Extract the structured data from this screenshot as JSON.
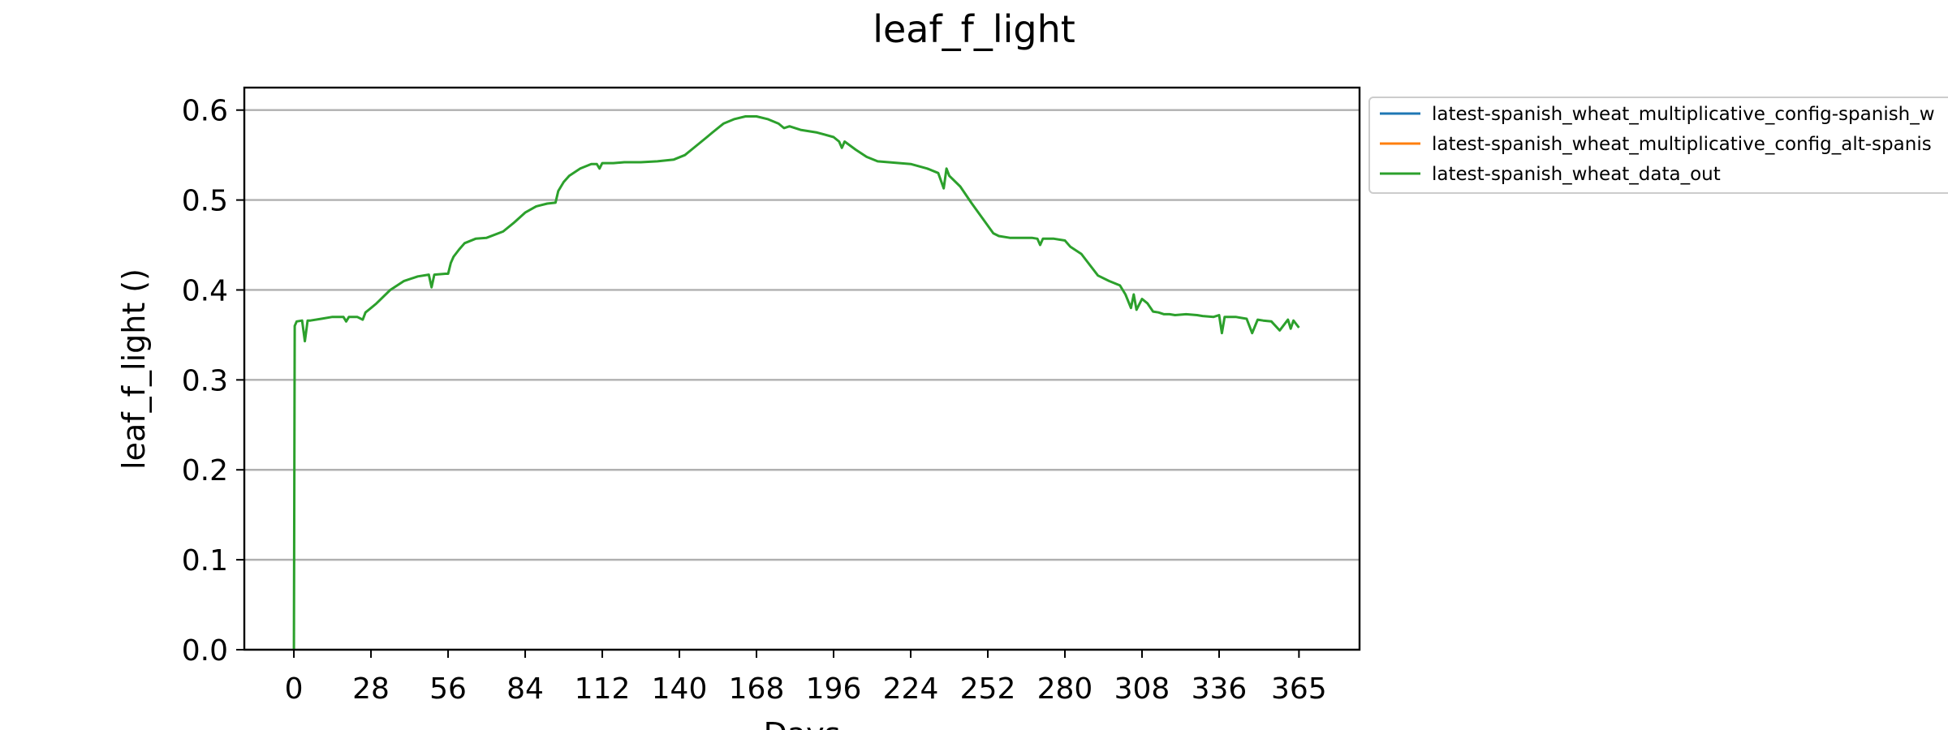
{
  "chart_data": {
    "type": "line",
    "title": "leaf_f_light",
    "xlabel": "Days",
    "ylabel": "leaf_f_light ()",
    "xlim": [
      -18,
      387
    ],
    "ylim": [
      0,
      0.625
    ],
    "x_ticks": [
      0,
      28,
      56,
      84,
      112,
      140,
      168,
      196,
      224,
      252,
      280,
      308,
      336,
      365
    ],
    "y_ticks": [
      0.0,
      0.1,
      0.2,
      0.3,
      0.4,
      0.5,
      0.6
    ],
    "y_tick_labels": [
      "0.0",
      "0.1",
      "0.2",
      "0.3",
      "0.4",
      "0.5",
      "0.6"
    ],
    "grid": "horizontal",
    "legend_position": "outside-right",
    "series": [
      {
        "name": "latest-spanish_wheat_multiplicative_config-spanish_w",
        "color": "#1f77b4",
        "x": [],
        "y": []
      },
      {
        "name": "latest-spanish_wheat_multiplicative_config_alt-spanis",
        "color": "#ff7f0e",
        "x": [],
        "y": []
      },
      {
        "name": "latest-spanish_wheat_data_out",
        "color": "#2ca02c",
        "x": [
          0,
          0.3,
          1,
          3,
          4,
          5,
          6,
          10,
          14,
          18,
          19,
          20,
          23,
          25,
          26,
          28,
          30,
          35,
          40,
          45,
          49,
          50,
          51,
          55,
          56,
          57,
          58,
          60,
          62,
          66,
          70,
          76,
          80,
          84,
          88,
          92,
          95,
          96,
          98,
          100,
          104,
          108,
          110,
          111,
          112,
          116,
          120,
          126,
          132,
          138,
          142,
          146,
          150,
          152,
          156,
          160,
          164,
          168,
          172,
          176,
          178,
          180,
          184,
          190,
          196,
          198,
          199,
          200,
          204,
          208,
          212,
          216,
          224,
          230,
          234,
          236,
          237,
          238,
          242,
          246,
          250,
          254,
          256,
          260,
          264,
          268,
          270,
          271,
          272,
          276,
          280,
          282,
          286,
          288,
          292,
          296,
          300,
          302,
          304,
          305,
          306,
          308,
          310,
          312,
          314,
          316,
          318,
          320,
          324,
          328,
          330,
          334,
          336,
          337,
          338,
          342,
          346,
          348,
          350,
          352,
          355,
          358,
          361,
          362,
          363,
          365
        ],
        "y": [
          0.0,
          0.36,
          0.365,
          0.366,
          0.343,
          0.366,
          0.366,
          0.368,
          0.37,
          0.37,
          0.365,
          0.37,
          0.37,
          0.367,
          0.375,
          0.38,
          0.385,
          0.4,
          0.41,
          0.415,
          0.417,
          0.403,
          0.417,
          0.418,
          0.418,
          0.43,
          0.437,
          0.445,
          0.452,
          0.457,
          0.458,
          0.465,
          0.475,
          0.486,
          0.493,
          0.496,
          0.497,
          0.51,
          0.52,
          0.527,
          0.535,
          0.54,
          0.54,
          0.535,
          0.541,
          0.541,
          0.542,
          0.542,
          0.543,
          0.545,
          0.55,
          0.56,
          0.57,
          0.575,
          0.585,
          0.59,
          0.593,
          0.593,
          0.59,
          0.585,
          0.58,
          0.582,
          0.578,
          0.575,
          0.57,
          0.565,
          0.558,
          0.565,
          0.556,
          0.548,
          0.543,
          0.542,
          0.54,
          0.535,
          0.53,
          0.513,
          0.535,
          0.527,
          0.515,
          0.497,
          0.48,
          0.463,
          0.46,
          0.458,
          0.458,
          0.458,
          0.457,
          0.45,
          0.457,
          0.457,
          0.455,
          0.448,
          0.44,
          0.432,
          0.416,
          0.41,
          0.405,
          0.395,
          0.38,
          0.395,
          0.378,
          0.39,
          0.385,
          0.376,
          0.375,
          0.373,
          0.373,
          0.372,
          0.373,
          0.372,
          0.371,
          0.37,
          0.372,
          0.352,
          0.37,
          0.37,
          0.368,
          0.352,
          0.367,
          0.366,
          0.365,
          0.355,
          0.367,
          0.357,
          0.366,
          0.358
        ]
      }
    ]
  }
}
